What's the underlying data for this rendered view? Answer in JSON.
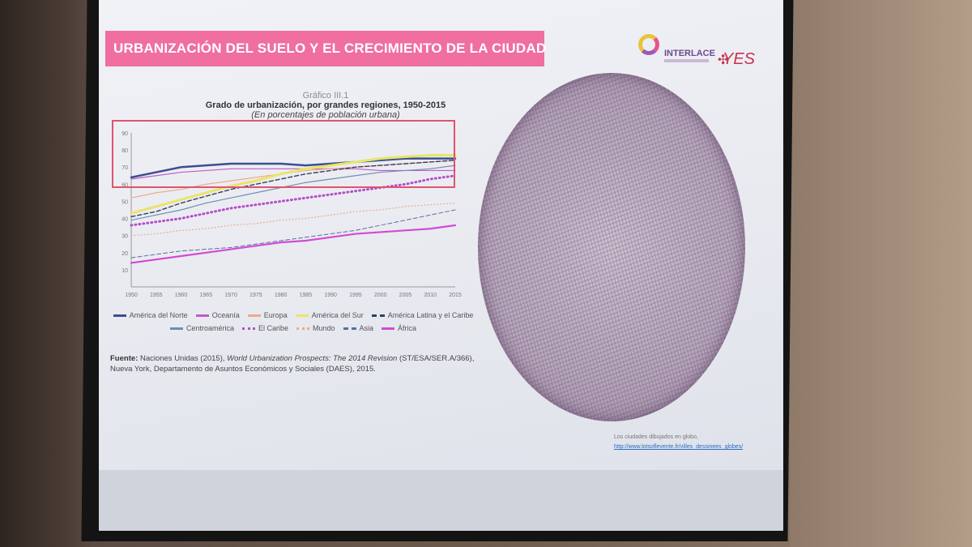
{
  "slide": {
    "title": "URBANIZACIÓN DEL SUELO Y EL CRECIMIENTO DE LA CIUDAD",
    "logo_interlace": "INTERLACE",
    "logo_yes": "YES"
  },
  "chart_caption": {
    "number": "Gráfico III.1",
    "title": "Grado de urbanización, por grandes regiones, 1950-2015",
    "subtitle": "(En porcentajes de población urbana)"
  },
  "source": {
    "label": "Fuente:",
    "text_before": "Naciones Unidas (2015),",
    "italic": "World Urbanization Prospects: The 2014 Revision",
    "text_after": "(ST/ESA/SER.A/366), Nueva York, Departamento de Asuntos Económicos y Sociales (DAES), 2015."
  },
  "globe": {
    "caption": "Los ciudades dibujados en globo,",
    "link": "http://www.lotsoflevente.fr/villes_dessinees_globes/"
  },
  "colors": {
    "accent_pink": "#f06ea0",
    "highlight": "#e0546f"
  },
  "chart_data": {
    "type": "line",
    "title": "Grado de urbanización, por grandes regiones, 1950-2015",
    "subtitle": "(En porcentajes de población urbana)",
    "x": [
      1950,
      1955,
      1960,
      1965,
      1970,
      1975,
      1980,
      1985,
      1990,
      1995,
      2000,
      2005,
      2010,
      2015
    ],
    "ylim": [
      0,
      90
    ],
    "yticks": [
      10,
      20,
      30,
      40,
      50,
      60,
      70,
      80,
      90
    ],
    "grid": false,
    "legend_position": "bottom",
    "series": [
      {
        "name": "América del Norte",
        "color": "#3b4f8f",
        "style": "solid",
        "width": 2.5,
        "values": [
          64,
          67,
          70,
          71,
          72,
          72,
          72,
          71,
          72,
          73,
          74,
          75,
          75,
          75
        ]
      },
      {
        "name": "Oceanía",
        "color": "#c05bc6",
        "style": "solid",
        "width": 1.2,
        "values": [
          63,
          65,
          67,
          68,
          69,
          69,
          69,
          69,
          69,
          69,
          68,
          68,
          68,
          68
        ]
      },
      {
        "name": "Europa",
        "color": "#f0a98a",
        "style": "solid",
        "width": 1.2,
        "values": [
          52,
          55,
          57,
          60,
          62,
          64,
          66,
          68,
          69,
          70,
          71,
          72,
          73,
          74
        ]
      },
      {
        "name": "América del Sur",
        "color": "#e9e46a",
        "style": "solid",
        "width": 3,
        "values": [
          43,
          47,
          51,
          55,
          59,
          62,
          66,
          69,
          71,
          73,
          75,
          76,
          77,
          77
        ]
      },
      {
        "name": "América Latina y el Caribe",
        "color": "#34405e",
        "style": "dashed",
        "width": 1.4,
        "values": [
          41,
          44,
          49,
          53,
          57,
          60,
          63,
          66,
          68,
          70,
          71,
          72,
          73,
          74
        ]
      },
      {
        "name": "Centroamérica",
        "color": "#6e8fb0",
        "style": "solid",
        "width": 1.2,
        "values": [
          39,
          42,
          45,
          49,
          52,
          55,
          58,
          61,
          63,
          65,
          67,
          68,
          69,
          71
        ]
      },
      {
        "name": "El Caribe",
        "color": "#b64cc8",
        "style": "dotted",
        "width": 3,
        "values": [
          36,
          38,
          40,
          43,
          46,
          48,
          50,
          52,
          54,
          56,
          58,
          60,
          63,
          65
        ]
      },
      {
        "name": "Mundo",
        "color": "#f0a98a",
        "style": "dotted",
        "width": 1.2,
        "values": [
          30,
          31,
          33,
          34,
          36,
          37,
          39,
          40,
          42,
          44,
          45,
          47,
          48,
          49
        ]
      },
      {
        "name": "Asia",
        "color": "#5a6f9e",
        "style": "dashed",
        "width": 1,
        "values": [
          17,
          19,
          21,
          22,
          23,
          25,
          27,
          29,
          31,
          33,
          36,
          39,
          42,
          45
        ]
      },
      {
        "name": "África",
        "color": "#d24ad6",
        "style": "solid",
        "width": 2.2,
        "values": [
          14,
          16,
          18,
          20,
          22,
          24,
          26,
          27,
          29,
          31,
          32,
          33,
          34,
          36
        ]
      }
    ]
  }
}
